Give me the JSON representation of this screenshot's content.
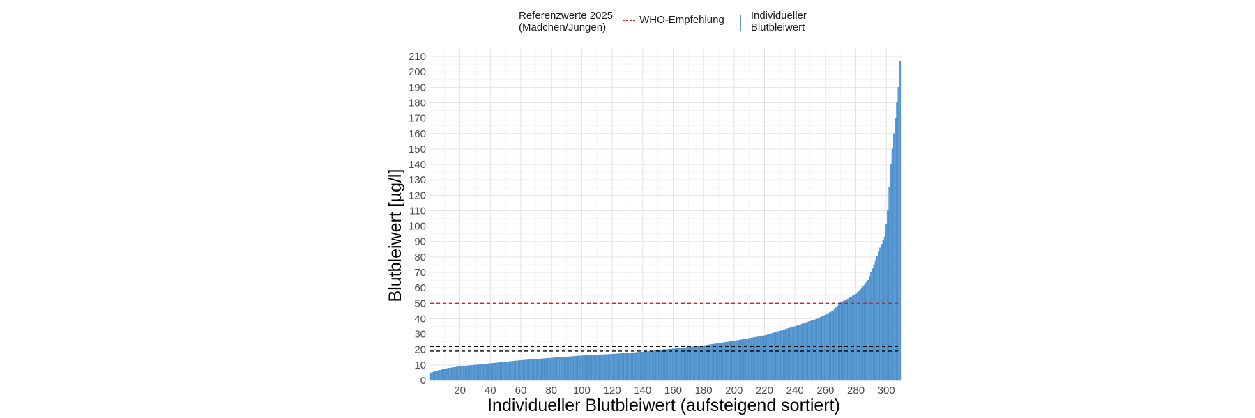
{
  "chart_data": {
    "type": "bar",
    "title": "",
    "xlabel": "Individueller Blutbleiwert (aufsteigend sortiert)",
    "ylabel": "Blutbleiwert [µg/l]",
    "xlim": [
      0.5,
      309.5
    ],
    "ylim": [
      0,
      215
    ],
    "x_ticks": [
      20,
      40,
      60,
      80,
      100,
      120,
      140,
      160,
      180,
      200,
      220,
      240,
      260,
      280,
      300
    ],
    "y_ticks": [
      0,
      10,
      20,
      30,
      40,
      50,
      60,
      70,
      80,
      90,
      100,
      110,
      120,
      130,
      140,
      150,
      160,
      170,
      180,
      190,
      200,
      210
    ],
    "n_values": 309,
    "profile": [
      [
        1,
        5
      ],
      [
        10,
        7.5
      ],
      [
        20,
        9
      ],
      [
        30,
        10
      ],
      [
        40,
        11
      ],
      [
        60,
        13
      ],
      [
        80,
        14.5
      ],
      [
        100,
        16
      ],
      [
        120,
        17
      ],
      [
        140,
        18.5
      ],
      [
        160,
        20.5
      ],
      [
        180,
        22.5
      ],
      [
        200,
        25.5
      ],
      [
        220,
        29
      ],
      [
        240,
        35
      ],
      [
        255,
        40
      ],
      [
        265,
        45
      ],
      [
        270,
        50.5
      ],
      [
        275,
        53
      ],
      [
        280,
        56
      ],
      [
        285,
        61
      ],
      [
        288,
        65
      ],
      [
        292,
        75
      ],
      [
        296,
        86
      ],
      [
        299,
        93
      ],
      [
        301,
        110
      ],
      [
        303,
        140
      ],
      [
        305,
        160
      ],
      [
        306,
        170
      ],
      [
        307,
        180
      ],
      [
        308,
        190
      ],
      [
        309,
        207
      ]
    ],
    "bar_color": "#5b9bd5",
    "bar_edge_color": "#2f6fa8",
    "reference_lines": [
      {
        "name": "Referenzwerte 2025 (Mädchen)",
        "y": 19,
        "color": "#000000",
        "dash": true
      },
      {
        "name": "Referenzwerte 2025 (Jungen)",
        "y": 22,
        "color": "#000000",
        "dash": true
      },
      {
        "name": "WHO-Empfehlung",
        "y": 50,
        "color": "#e41a1c",
        "dash": true
      }
    ],
    "legend": {
      "position": "top",
      "entries": [
        {
          "line1": "Referenzwerte 2025",
          "line2": "(Mädchen/Jungen)"
        },
        {
          "line1": "WHO-Empfehlung"
        },
        {
          "line1": "Individueller",
          "line2": "Blutbleiwert"
        }
      ]
    },
    "grid": true
  }
}
